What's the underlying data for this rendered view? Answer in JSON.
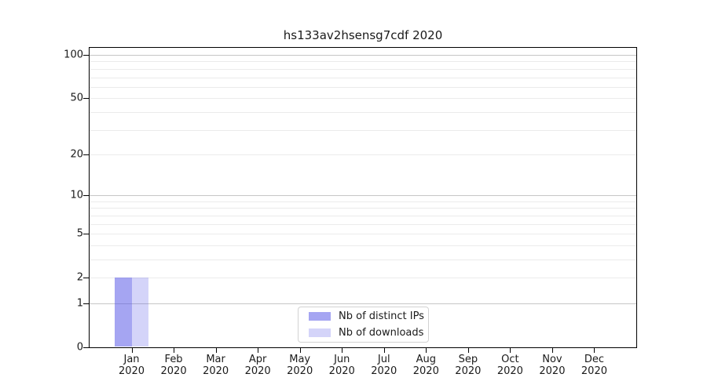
{
  "chart_data": {
    "type": "bar",
    "title": "hs133av2hsensg7cdf 2020",
    "categories": [
      "Jan 2020",
      "Feb 2020",
      "Mar 2020",
      "Apr 2020",
      "May 2020",
      "Jun 2020",
      "Jul 2020",
      "Aug 2020",
      "Sep 2020",
      "Oct 2020",
      "Nov 2020",
      "Dec 2020"
    ],
    "series": [
      {
        "name": "Nb of distinct IPs",
        "color": "rgba(82,82,230,0.52)",
        "values": [
          2,
          0,
          0,
          0,
          0,
          0,
          0,
          0,
          0,
          0,
          0,
          0
        ]
      },
      {
        "name": "Nb of downloads",
        "color": "rgba(82,82,230,0.25)",
        "values": [
          2,
          0,
          0,
          0,
          0,
          0,
          0,
          0,
          0,
          0,
          0,
          0
        ]
      }
    ],
    "xlabel": "",
    "ylabel": "",
    "yscale": "log1p",
    "ylim": [
      0,
      112
    ],
    "yticks": [
      0,
      1,
      2,
      5,
      10,
      20,
      50,
      100
    ],
    "grid": {
      "on": true,
      "major": [
        1,
        10,
        100
      ],
      "minor": [
        2,
        3,
        4,
        5,
        6,
        7,
        8,
        9,
        20,
        30,
        40,
        50,
        60,
        70,
        80,
        90
      ]
    },
    "legend": {
      "position": "lower center",
      "entries": [
        "Nb of distinct IPs",
        "Nb of downloads"
      ]
    }
  }
}
